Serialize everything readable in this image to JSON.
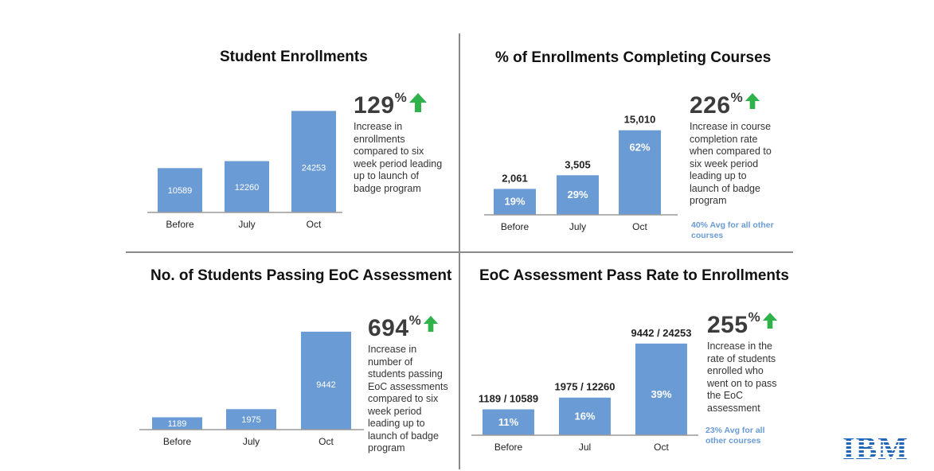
{
  "colors": {
    "bar": "#6a9bd4",
    "arrow": "#2fb24a",
    "note": "#6a9bd4",
    "logo": "#1f66b8"
  },
  "logo": {
    "text": "IBM"
  },
  "chart_data": [
    {
      "type": "bar",
      "title": "Student Enrollments",
      "categories": [
        "Before",
        "July",
        "Oct"
      ],
      "values": [
        10589,
        12260,
        24253
      ],
      "bar_labels": [
        "10589",
        "12260",
        "24253"
      ],
      "ylim": [
        0,
        27000
      ],
      "stat": {
        "value": "129",
        "unit": "%",
        "lines": [
          "Increase in",
          "enrollments",
          "compared to six",
          "week period leading",
          "up to launch of",
          "badge program"
        ]
      }
    },
    {
      "type": "bar",
      "title": "% of Enrollments Completing Courses",
      "categories": [
        "Before",
        "July",
        "Oct"
      ],
      "values": [
        19,
        29,
        62
      ],
      "bar_labels": [
        "19%",
        "29%",
        "62%"
      ],
      "above_labels": [
        "2,061",
        "3,505",
        "15,010"
      ],
      "ylim": [
        0,
        70
      ],
      "stat": {
        "value": "226",
        "unit": "%",
        "lines": [
          "Increase in course",
          "completion rate",
          "when compared to",
          "six week period",
          "leading up to",
          "launch of badge",
          "program"
        ]
      },
      "note": [
        "40% Avg for all other",
        "courses"
      ]
    },
    {
      "type": "bar",
      "title": "No. of Students Passing EoC Assessment",
      "categories": [
        "Before",
        "July",
        "Oct"
      ],
      "values": [
        1189,
        1975,
        9442
      ],
      "bar_labels": [
        "1189",
        "1975",
        "9442"
      ],
      "ylim": [
        0,
        10200
      ],
      "stat": {
        "value": "694",
        "unit": "%",
        "lines": [
          "Increase in",
          "number of",
          "students passing",
          "EoC assessments",
          "compared to six",
          "week period",
          "leading up to",
          "launch of badge",
          "program"
        ]
      }
    },
    {
      "type": "bar",
      "title": "EoC Assessment Pass Rate to Enrollments",
      "categories": [
        "Before",
        "Jul",
        "Oct"
      ],
      "values": [
        11,
        16,
        39
      ],
      "bar_labels": [
        "11%",
        "16%",
        "39%"
      ],
      "above_labels": [
        "1189 / 10589",
        "1975 / 12260",
        "9442 / 24253"
      ],
      "ylim": [
        0,
        43
      ],
      "stat": {
        "value": "255",
        "unit": "%",
        "lines": [
          "Increase in the",
          "rate of students",
          "enrolled who",
          "went on to pass",
          "the EoC",
          "assessment"
        ]
      },
      "note": [
        "23% Avg for all",
        "other courses"
      ]
    }
  ]
}
